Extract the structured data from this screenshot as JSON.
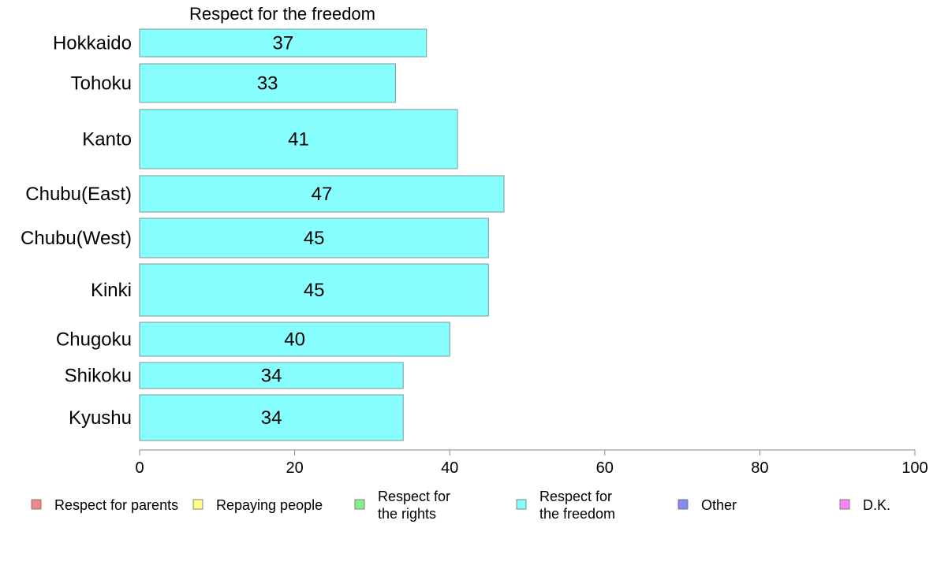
{
  "chart_data": {
    "type": "bar",
    "orientation": "horizontal",
    "title": "Respect for the freedom",
    "categories": [
      "Hokkaido",
      "Tohoku",
      "Kanto",
      "Chubu(East)",
      "Chubu(West)",
      "Kinki",
      "Chugoku",
      "Shikoku",
      "Kyushu"
    ],
    "series": [
      {
        "name": "Respect for the freedom",
        "color": "#88ffff",
        "values": [
          37,
          33,
          41,
          47,
          45,
          45,
          40,
          34,
          34
        ],
        "value_labels": [
          "37",
          "33",
          "41",
          "47",
          "45",
          "45",
          "40",
          "34",
          "34"
        ]
      }
    ],
    "xlim": [
      0,
      100
    ],
    "xticks": [
      "0",
      "20",
      "40",
      "60",
      "80",
      "100"
    ],
    "grid": false,
    "legend": {
      "placement": "bottom",
      "entries": [
        {
          "lines": [
            "Respect for parents"
          ],
          "color": "#f08888"
        },
        {
          "lines": [
            "Repaying people"
          ],
          "color": "#ffff88"
        },
        {
          "lines": [
            "Respect for",
            "the rights"
          ],
          "color": "#88f088"
        },
        {
          "lines": [
            "Respect for",
            "the freedom"
          ],
          "color": "#88ffff"
        },
        {
          "lines": [
            "Other"
          ],
          "color": "#8888f8"
        },
        {
          "lines": [
            "D.K."
          ],
          "color": "#f888f8"
        }
      ]
    }
  }
}
